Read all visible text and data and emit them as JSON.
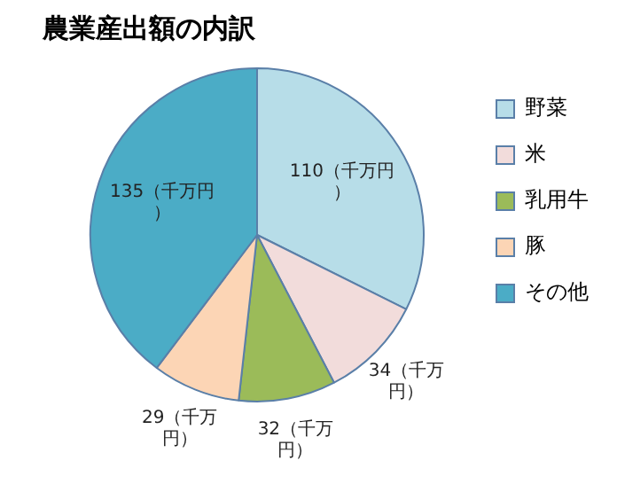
{
  "chart_data": {
    "type": "pie",
    "title": "農業産出額の内訳",
    "categories": [
      "野菜",
      "米",
      "乳用牛",
      "豚",
      "その他"
    ],
    "values": [
      110,
      34,
      32,
      29,
      135
    ],
    "colors": [
      "#b7dde8",
      "#f2dcdb",
      "#9bbb59",
      "#fcd5b5",
      "#4bacc6"
    ],
    "value_labels": [
      "110（千万円）",
      "34（千万円）",
      "32（千万円）",
      "29（千万円）",
      "135（千万円）"
    ],
    "legend": "right"
  }
}
